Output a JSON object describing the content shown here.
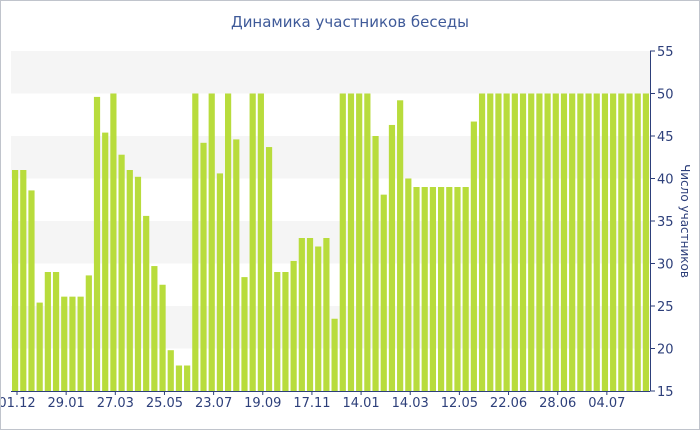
{
  "chart_data": {
    "type": "bar",
    "title": "Динамика участников беседы",
    "xlabel": "",
    "ylabel": "Число участников",
    "ylim": [
      15,
      55
    ],
    "yticks": [
      15,
      20,
      25,
      30,
      35,
      40,
      45,
      50,
      55
    ],
    "x_tick_labels": [
      "01.12",
      "29.01",
      "27.03",
      "25.05",
      "23.07",
      "19.09",
      "17.11",
      "14.01",
      "14.03",
      "12.05",
      "22.06",
      "28.06",
      "04.07"
    ],
    "values": [
      41,
      41,
      38.6,
      25.4,
      29,
      29,
      26.1,
      26.1,
      26.1,
      28.6,
      49.6,
      45.4,
      50,
      42.8,
      41,
      40.2,
      35.6,
      29.7,
      27.5,
      19.8,
      18,
      18,
      50,
      44.2,
      50,
      40.6,
      50,
      44.6,
      28.4,
      50,
      50,
      43.7,
      29,
      29,
      30.3,
      33,
      33,
      32,
      33,
      23.5,
      50,
      50,
      50,
      50,
      45,
      38.1,
      46.3,
      49.2,
      40,
      39,
      39,
      39,
      39,
      39,
      39,
      39,
      46.7,
      50,
      50,
      50,
      50,
      50,
      50,
      50,
      50,
      50,
      50,
      50,
      50,
      50,
      50,
      50,
      50,
      50,
      50,
      50,
      50,
      50
    ],
    "bar_color": "#b8dc3c",
    "band_color": "#f5f5f5",
    "axis_color": "#2d3f7a",
    "grid": true,
    "legend": "none"
  }
}
